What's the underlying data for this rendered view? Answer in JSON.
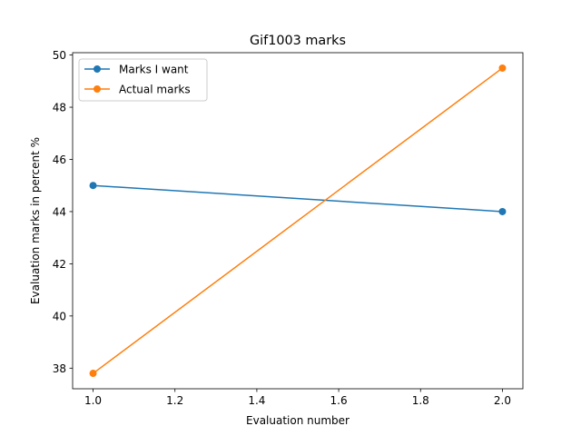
{
  "chart_data": {
    "type": "line",
    "title": "Gif1003 marks",
    "xlabel": "Evaluation number",
    "ylabel": "Evaluation marks in percent %",
    "xlim": [
      0.95,
      2.05
    ],
    "ylim": [
      37.21,
      50.09
    ],
    "xticks": [
      "1.0",
      "1.2",
      "1.4",
      "1.6",
      "1.8",
      "2.0"
    ],
    "yticks": [
      "38",
      "40",
      "42",
      "44",
      "46",
      "48",
      "50"
    ],
    "grid": false,
    "legend_position": "upper left",
    "series": [
      {
        "name": "Marks I want",
        "color": "#1f77b4",
        "marker": "circle",
        "x": [
          1.0,
          2.0
        ],
        "y": [
          45.0,
          44.0
        ]
      },
      {
        "name": "Actual marks",
        "color": "#ff7f0e",
        "marker": "circle",
        "x": [
          1.0,
          2.0
        ],
        "y": [
          37.8,
          49.5
        ]
      }
    ]
  }
}
